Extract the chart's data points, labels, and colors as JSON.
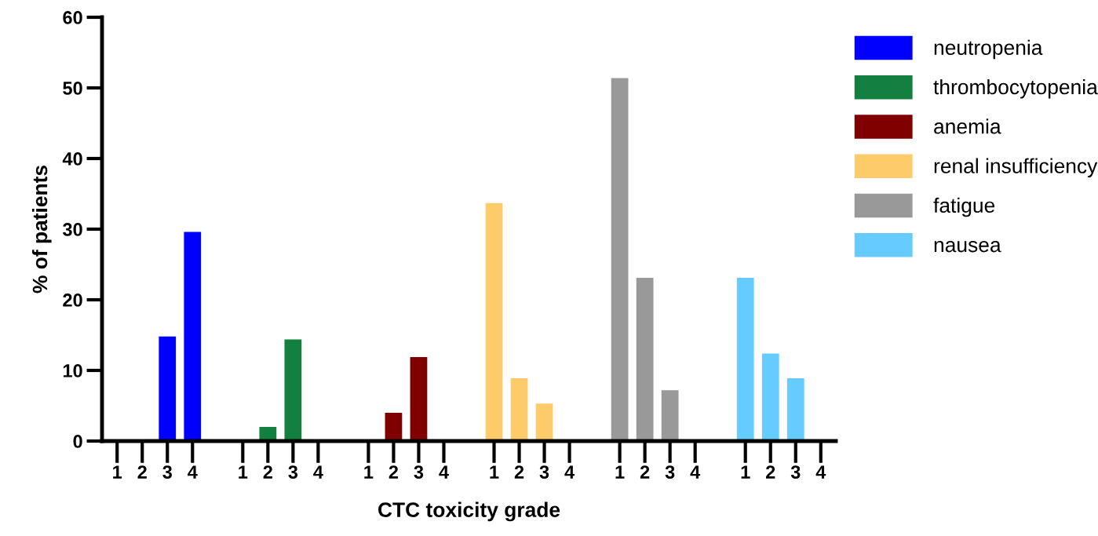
{
  "chart_data": {
    "type": "bar",
    "xlabel": "CTC toxicity grade",
    "ylabel": "% of patients",
    "categories": [
      "1",
      "2",
      "3",
      "4",
      null,
      "1",
      "2",
      "3",
      "4",
      null,
      "1",
      "2",
      "3",
      "4",
      null,
      "1",
      "2",
      "3",
      "4",
      null,
      "1",
      "2",
      "3",
      "4",
      null,
      "1",
      "2",
      "3",
      "4"
    ],
    "series": [
      {
        "name": "neutropenia",
        "color": "#0000ff",
        "values": [
          null,
          null,
          14.8,
          29.6,
          null,
          null,
          null,
          null,
          null,
          null,
          null,
          null,
          null,
          null,
          null,
          null,
          null,
          null,
          null,
          null,
          null,
          null,
          null,
          null,
          null,
          null,
          null,
          null,
          null
        ]
      },
      {
        "name": "thrombocytopenia",
        "color": "#148040",
        "values": [
          null,
          null,
          null,
          null,
          null,
          null,
          2.0,
          14.4,
          null,
          null,
          null,
          null,
          null,
          null,
          null,
          null,
          null,
          null,
          null,
          null,
          null,
          null,
          null,
          null,
          null,
          null,
          null,
          null,
          null
        ]
      },
      {
        "name": "anemia",
        "color": "#800000",
        "values": [
          null,
          null,
          null,
          null,
          null,
          null,
          null,
          null,
          null,
          null,
          null,
          4.0,
          11.9,
          null,
          null,
          null,
          null,
          null,
          null,
          null,
          null,
          null,
          null,
          null,
          null,
          null,
          null,
          null,
          null
        ]
      },
      {
        "name": "renal insufficiency",
        "color": "#fecb6b",
        "values": [
          null,
          null,
          null,
          null,
          null,
          null,
          null,
          null,
          null,
          null,
          null,
          null,
          null,
          null,
          null,
          33.7,
          8.9,
          5.3,
          null,
          null,
          null,
          null,
          null,
          null,
          null,
          null,
          null,
          null,
          null
        ]
      },
      {
        "name": "fatigue",
        "color": "#999999",
        "values": [
          null,
          null,
          null,
          null,
          null,
          null,
          null,
          null,
          null,
          null,
          null,
          null,
          null,
          null,
          null,
          null,
          null,
          null,
          null,
          null,
          51.4,
          23.1,
          7.2,
          null,
          null,
          null,
          null,
          null,
          null
        ]
      },
      {
        "name": "nausea",
        "color": "#66ccff",
        "values": [
          null,
          null,
          null,
          null,
          null,
          null,
          null,
          null,
          null,
          null,
          null,
          null,
          null,
          null,
          null,
          null,
          null,
          null,
          null,
          null,
          null,
          null,
          null,
          null,
          null,
          23.1,
          12.4,
          8.9,
          null
        ]
      }
    ],
    "ylim": [
      0,
      60
    ],
    "yticks": [
      0,
      10,
      20,
      30,
      40,
      50,
      60
    ],
    "legend": "top right",
    "grid": false
  }
}
